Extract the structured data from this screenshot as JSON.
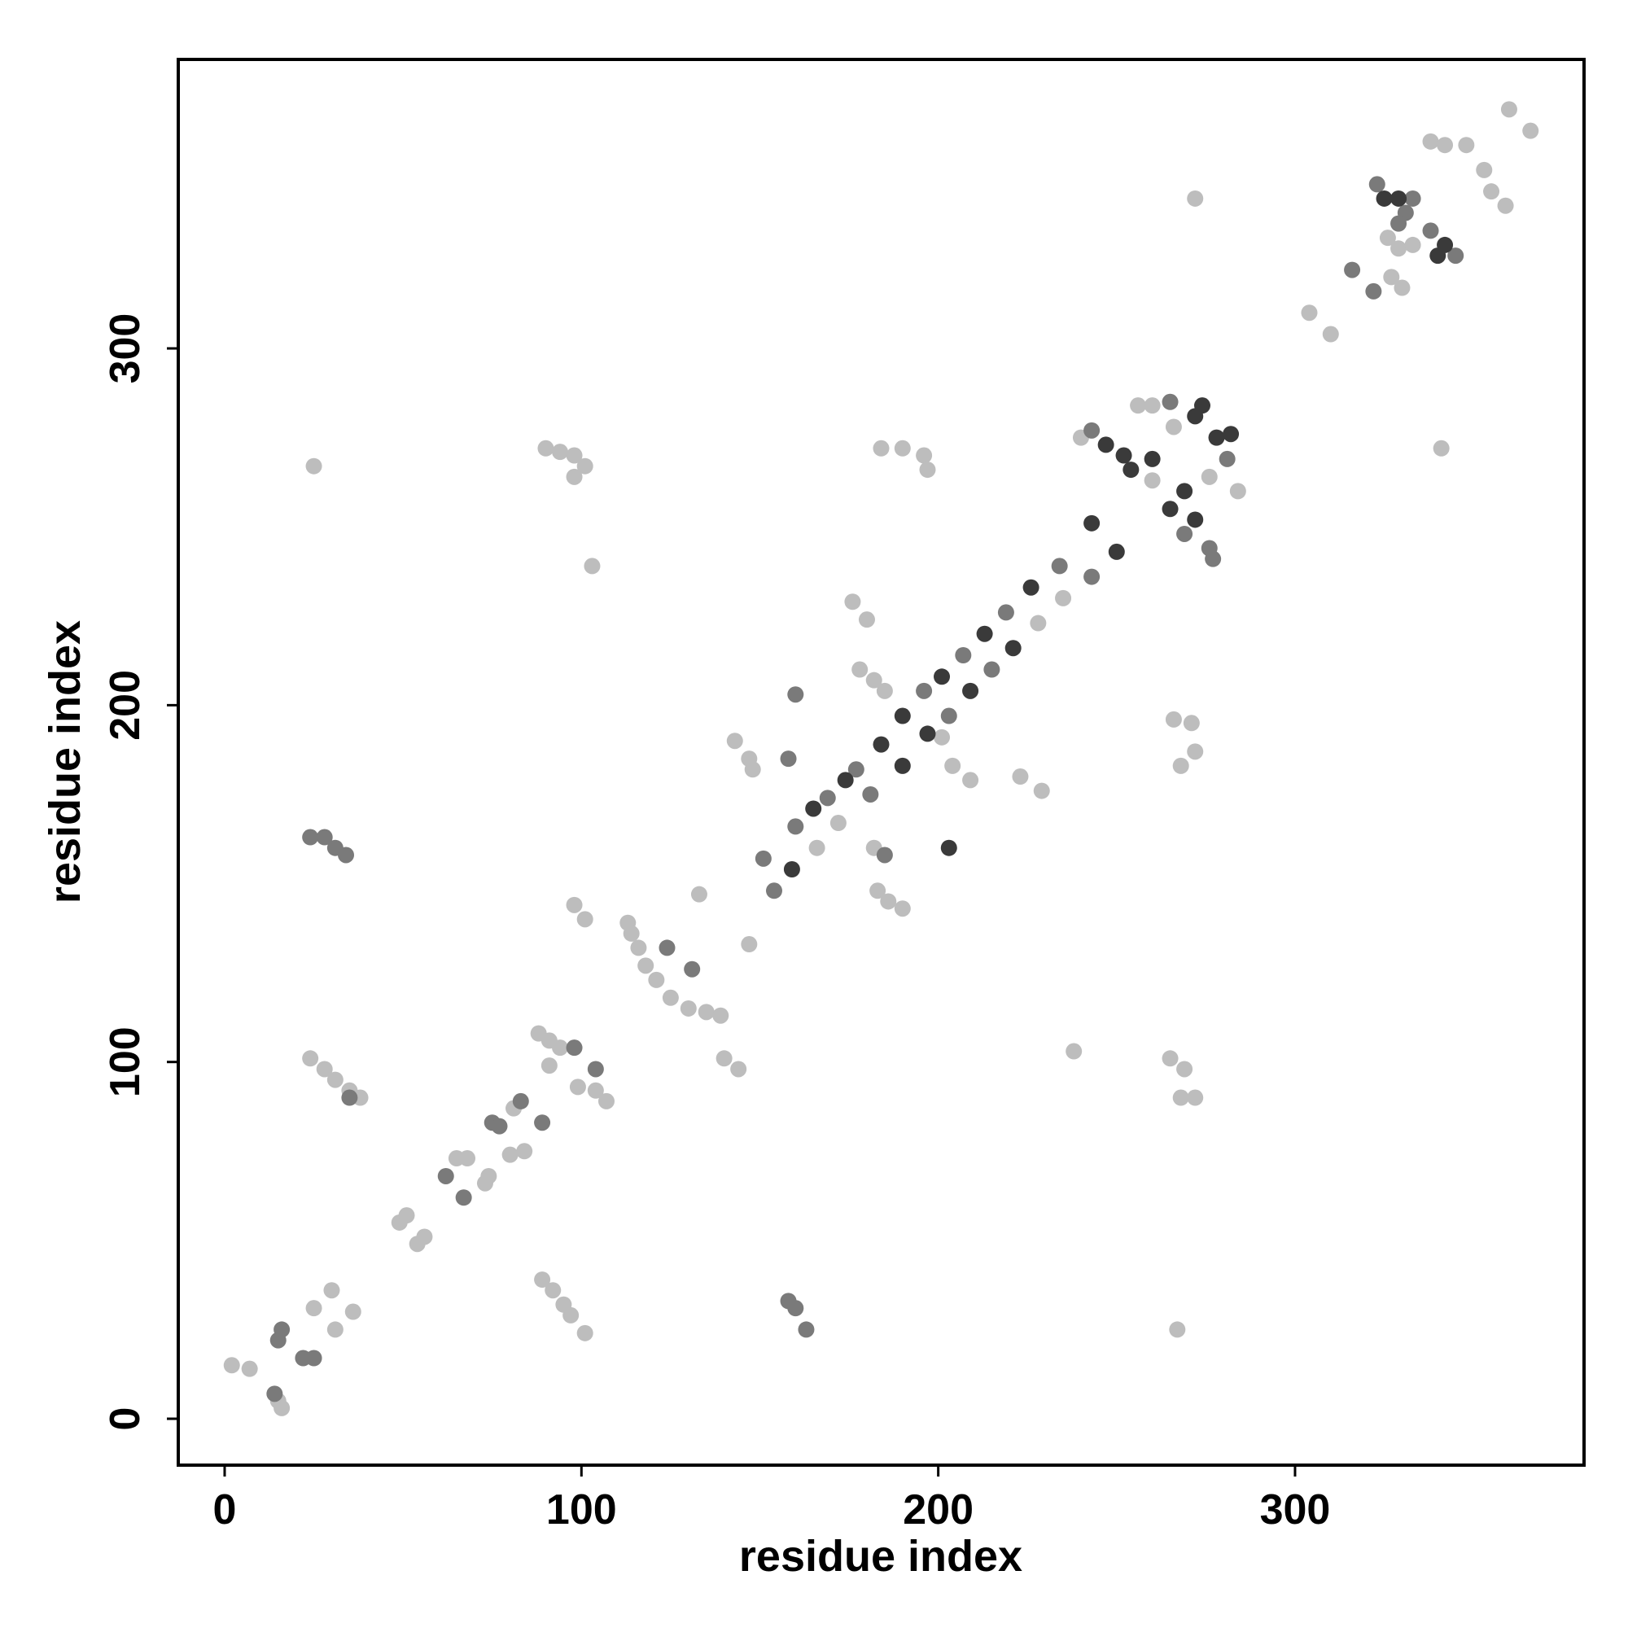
{
  "chart_data": {
    "type": "scatter",
    "xlabel": "residue index",
    "ylabel": "residue index",
    "xlim": [
      -13,
      381
    ],
    "ylim": [
      -13,
      381
    ],
    "xticks": [
      0,
      100,
      200,
      300
    ],
    "yticks": [
      0,
      100,
      200,
      300
    ],
    "grid": false,
    "series": [
      {
        "color": "#bdbdbd",
        "x": [
          2,
          7,
          15,
          16,
          25,
          30,
          31,
          36,
          49,
          51,
          54,
          56,
          65,
          68,
          73,
          74,
          81,
          80,
          84,
          88,
          91,
          94,
          91,
          99,
          104,
          107,
          24,
          28,
          31,
          35,
          38,
          113,
          114,
          116,
          118,
          121,
          125,
          130,
          135,
          139,
          98,
          101,
          103,
          140,
          144,
          133,
          147,
          25,
          90,
          94,
          98,
          101,
          98,
          89,
          92,
          95,
          97,
          101,
          267,
          143,
          147,
          148,
          176,
          180,
          178,
          182,
          185,
          201,
          204,
          209,
          182,
          183,
          186,
          190,
          184,
          190,
          196,
          197,
          223,
          229,
          266,
          271,
          272,
          268,
          265,
          269,
          268,
          272,
          238,
          256,
          260,
          266,
          276,
          284,
          260,
          240,
          304,
          310,
          341,
          272,
          326,
          329,
          333,
          327,
          330,
          338,
          342,
          348,
          353,
          355,
          359,
          360,
          366,
          166,
          172,
          228,
          235
        ],
        "values": [
          15,
          14,
          5,
          3,
          31,
          36,
          25,
          30,
          55,
          57,
          49,
          51,
          73,
          73,
          66,
          68,
          87,
          74,
          75,
          108,
          106,
          104,
          99,
          93,
          92,
          89,
          101,
          98,
          95,
          92,
          90,
          139,
          136,
          132,
          127,
          123,
          118,
          115,
          114,
          113,
          144,
          140,
          239,
          101,
          98,
          147,
          133,
          267,
          272,
          271,
          270,
          267,
          264,
          39,
          36,
          32,
          29,
          24,
          25,
          190,
          185,
          182,
          229,
          224,
          210,
          207,
          204,
          191,
          183,
          179,
          160,
          148,
          145,
          143,
          272,
          272,
          270,
          266,
          180,
          176,
          196,
          195,
          187,
          183,
          101,
          98,
          90,
          90,
          103,
          284,
          284,
          278,
          264,
          260,
          263,
          275,
          310,
          304,
          272,
          342,
          331,
          328,
          329,
          320,
          317,
          358,
          357,
          357,
          350,
          344,
          340,
          367,
          361,
          160,
          167,
          223,
          230
        ]
      },
      {
        "color": "#7a7a7a",
        "x": [
          15,
          16,
          14,
          22,
          25,
          62,
          67,
          75,
          77,
          83,
          89,
          98,
          104,
          35,
          124,
          131,
          24,
          28,
          31,
          34,
          158,
          160,
          163,
          160,
          158,
          185,
          243,
          265,
          281,
          269,
          276,
          277,
          316,
          322,
          323,
          333,
          331,
          329,
          338,
          345,
          151,
          160,
          169,
          177,
          196,
          207,
          219,
          234,
          154,
          181,
          203,
          215,
          243
        ],
        "values": [
          22,
          25,
          7,
          17,
          17,
          68,
          62,
          83,
          82,
          89,
          83,
          104,
          98,
          90,
          132,
          126,
          163,
          163,
          160,
          158,
          33,
          31,
          25,
          203,
          185,
          158,
          277,
          285,
          269,
          248,
          244,
          241,
          322,
          316,
          346,
          342,
          338,
          335,
          333,
          326,
          157,
          166,
          174,
          182,
          204,
          214,
          226,
          239,
          148,
          175,
          197,
          210,
          236
        ]
      },
      {
        "color": "#3a3a3a",
        "x": [
          203,
          247,
          252,
          254,
          274,
          272,
          278,
          282,
          269,
          265,
          272,
          260,
          325,
          329,
          342,
          340,
          165,
          174,
          184,
          190,
          201,
          213,
          226,
          243,
          159,
          190,
          197,
          209,
          221,
          250
        ],
        "values": [
          160,
          273,
          270,
          266,
          284,
          281,
          275,
          276,
          260,
          255,
          252,
          269,
          342,
          342,
          329,
          326,
          171,
          179,
          189,
          197,
          208,
          220,
          233,
          251,
          154,
          183,
          192,
          204,
          216,
          243
        ]
      }
    ]
  }
}
